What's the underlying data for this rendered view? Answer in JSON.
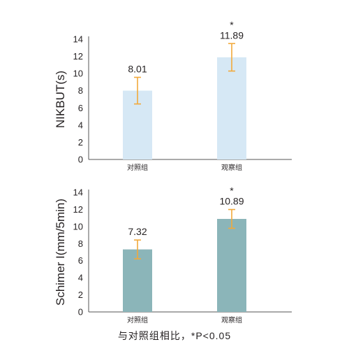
{
  "chart_data": [
    {
      "type": "bar",
      "categories": [
        "对照组",
        "观察组"
      ],
      "values": [
        8.01,
        11.89
      ],
      "value_labels": [
        "8.01",
        "11.89"
      ],
      "error": [
        1.55,
        1.6
      ],
      "significance": [
        "",
        "*"
      ],
      "ylabel": "NIKBUT(s)",
      "ylim": [
        0,
        14
      ],
      "yticks": [
        "0",
        "2",
        "4",
        "6",
        "8",
        "10",
        "12",
        "14"
      ],
      "bar_color": "#d6e8f5",
      "error_color": "#f2a93b",
      "grid": false
    },
    {
      "type": "bar",
      "categories": [
        "对照组",
        "观察组"
      ],
      "values": [
        7.32,
        10.89
      ],
      "value_labels": [
        "7.32",
        "10.89"
      ],
      "error": [
        1.1,
        1.1
      ],
      "significance": [
        "",
        "*"
      ],
      "ylabel": "Schimer I(mm/5min)",
      "ylim": [
        0,
        14
      ],
      "yticks": [
        "0",
        "2",
        "4",
        "6",
        "8",
        "10",
        "12",
        "14"
      ],
      "bar_color": "#8bb5b9",
      "error_color": "#f2a93b",
      "grid": false
    }
  ],
  "footnote": "与对照组相比，*P<0.05"
}
